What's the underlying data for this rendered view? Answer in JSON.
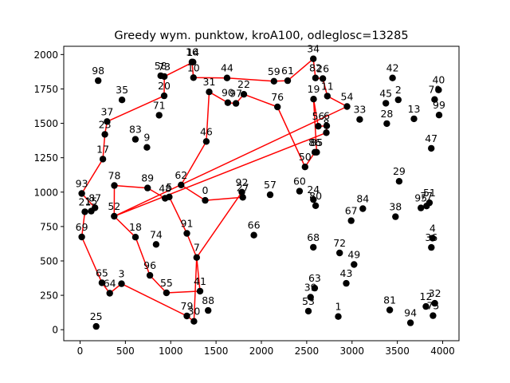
{
  "chart_data": {
    "type": "scatter",
    "title": "Greedy wym. punktow, kroA100, odleglosc=13285",
    "xlabel": "",
    "ylabel": "",
    "xlim": [
      -180,
      4180
    ],
    "ylim": [
      -80,
      2060
    ],
    "xticks": [
      0,
      500,
      1000,
      1500,
      2000,
      2500,
      3000,
      3500,
      4000
    ],
    "yticks": [
      0,
      250,
      500,
      750,
      1000,
      1250,
      1500,
      1750,
      2000
    ],
    "grid": false,
    "colors": {
      "point": "#000000",
      "route": "#ff0000"
    },
    "points": [
      {
        "id": "0",
        "x": 1380,
        "y": 940
      },
      {
        "id": "1",
        "x": 2848,
        "y": 96
      },
      {
        "id": "2",
        "x": 3510,
        "y": 1671
      },
      {
        "id": "3",
        "x": 457,
        "y": 334
      },
      {
        "id": "4",
        "x": 3888,
        "y": 666
      },
      {
        "id": "5",
        "x": 984,
        "y": 965
      },
      {
        "id": "6",
        "x": 2721,
        "y": 1482
      },
      {
        "id": "7",
        "x": 1286,
        "y": 525
      },
      {
        "id": "8",
        "x": 2716,
        "y": 1432
      },
      {
        "id": "9",
        "x": 738,
        "y": 1325
      },
      {
        "id": "10",
        "x": 1251,
        "y": 1832
      },
      {
        "id": "11",
        "x": 2728,
        "y": 1698
      },
      {
        "id": "12",
        "x": 3815,
        "y": 169
      },
      {
        "id": "13",
        "x": 3683,
        "y": 1533
      },
      {
        "id": "14",
        "x": 1247,
        "y": 1945
      },
      {
        "id": "15",
        "x": 123,
        "y": 862
      },
      {
        "id": "16",
        "x": 1234,
        "y": 1946
      },
      {
        "id": "17",
        "x": 252,
        "y": 1240
      },
      {
        "id": "18",
        "x": 611,
        "y": 673
      },
      {
        "id": "19",
        "x": 2576,
        "y": 1676
      },
      {
        "id": "20",
        "x": 928,
        "y": 1700
      },
      {
        "id": "21",
        "x": 53,
        "y": 857
      },
      {
        "id": "22",
        "x": 1807,
        "y": 1711
      },
      {
        "id": "23",
        "x": 274,
        "y": 1420
      },
      {
        "id": "24",
        "x": 2574,
        "y": 946
      },
      {
        "id": "25",
        "x": 178,
        "y": 24
      },
      {
        "id": "26",
        "x": 2678,
        "y": 1825
      },
      {
        "id": "27",
        "x": 1795,
        "y": 962
      },
      {
        "id": "28",
        "x": 3384,
        "y": 1498
      },
      {
        "id": "29",
        "x": 3520,
        "y": 1079
      },
      {
        "id": "30",
        "x": 1256,
        "y": 61
      },
      {
        "id": "31",
        "x": 1424,
        "y": 1728
      },
      {
        "id": "32",
        "x": 3913,
        "y": 192
      },
      {
        "id": "33",
        "x": 3085,
        "y": 1528
      },
      {
        "id": "34",
        "x": 2573,
        "y": 1969
      },
      {
        "id": "35",
        "x": 463,
        "y": 1670
      },
      {
        "id": "36",
        "x": 3875,
        "y": 598
      },
      {
        "id": "37",
        "x": 298,
        "y": 1513
      },
      {
        "id": "38",
        "x": 3479,
        "y": 821
      },
      {
        "id": "39",
        "x": 2542,
        "y": 236
      },
      {
        "id": "40",
        "x": 3955,
        "y": 1743
      },
      {
        "id": "41",
        "x": 1323,
        "y": 280
      },
      {
        "id": "42",
        "x": 3447,
        "y": 1830
      },
      {
        "id": "43",
        "x": 2936,
        "y": 337
      },
      {
        "id": "44",
        "x": 1621,
        "y": 1830
      },
      {
        "id": "45",
        "x": 3373,
        "y": 1646
      },
      {
        "id": "46",
        "x": 1393,
        "y": 1368
      },
      {
        "id": "47",
        "x": 3874,
        "y": 1318
      },
      {
        "id": "48",
        "x": 938,
        "y": 955
      },
      {
        "id": "49",
        "x": 3022,
        "y": 474
      },
      {
        "id": "50",
        "x": 2482,
        "y": 1183
      },
      {
        "id": "51",
        "x": 3854,
        "y": 923
      },
      {
        "id": "52",
        "x": 376,
        "y": 825
      },
      {
        "id": "53",
        "x": 2519,
        "y": 135
      },
      {
        "id": "54",
        "x": 2945,
        "y": 1622
      },
      {
        "id": "55",
        "x": 953,
        "y": 268
      },
      {
        "id": "56",
        "x": 2628,
        "y": 1479
      },
      {
        "id": "57",
        "x": 2097,
        "y": 981
      },
      {
        "id": "58",
        "x": 890,
        "y": 1846
      },
      {
        "id": "59",
        "x": 2139,
        "y": 1806
      },
      {
        "id": "60",
        "x": 2421,
        "y": 1007
      },
      {
        "id": "61",
        "x": 2290,
        "y": 1810
      },
      {
        "id": "62",
        "x": 1115,
        "y": 1052
      },
      {
        "id": "63",
        "x": 2588,
        "y": 302
      },
      {
        "id": "64",
        "x": 327,
        "y": 265
      },
      {
        "id": "65",
        "x": 241,
        "y": 341
      },
      {
        "id": "66",
        "x": 1917,
        "y": 687
      },
      {
        "id": "67",
        "x": 2991,
        "y": 792
      },
      {
        "id": "68",
        "x": 2573,
        "y": 599
      },
      {
        "id": "69",
        "x": 19,
        "y": 674
      },
      {
        "id": "70",
        "x": 3911,
        "y": 1673
      },
      {
        "id": "71",
        "x": 872,
        "y": 1559
      },
      {
        "id": "72",
        "x": 2863,
        "y": 558
      },
      {
        "id": "73",
        "x": 929,
        "y": 1840
      },
      {
        "id": "74",
        "x": 839,
        "y": 620
      },
      {
        "id": "75",
        "x": 3893,
        "y": 102
      },
      {
        "id": "76",
        "x": 2178,
        "y": 1619
      },
      {
        "id": "77",
        "x": 3822,
        "y": 899
      },
      {
        "id": "78",
        "x": 378,
        "y": 1048
      },
      {
        "id": "79",
        "x": 1178,
        "y": 100
      },
      {
        "id": "80",
        "x": 2599,
        "y": 901
      },
      {
        "id": "81",
        "x": 3416,
        "y": 143
      },
      {
        "id": "82",
        "x": 2597,
        "y": 1830
      },
      {
        "id": "83",
        "x": 610,
        "y": 1384
      },
      {
        "id": "84",
        "x": 3119,
        "y": 880
      },
      {
        "id": "85",
        "x": 2610,
        "y": 1290
      },
      {
        "id": "86",
        "x": 2590,
        "y": 1290
      },
      {
        "id": "87",
        "x": 165,
        "y": 886
      },
      {
        "id": "88",
        "x": 1413,
        "y": 140
      },
      {
        "id": "89",
        "x": 745,
        "y": 1030
      },
      {
        "id": "90",
        "x": 1630,
        "y": 1650
      },
      {
        "id": "91",
        "x": 1178,
        "y": 700
      },
      {
        "id": "92",
        "x": 1785,
        "y": 1000
      },
      {
        "id": "93",
        "x": 19,
        "y": 990
      },
      {
        "id": "94",
        "x": 3645,
        "y": 50
      },
      {
        "id": "95",
        "x": 3760,
        "y": 885
      },
      {
        "id": "96",
        "x": 770,
        "y": 395
      },
      {
        "id": "97",
        "x": 1720,
        "y": 1645
      },
      {
        "id": "98",
        "x": 200,
        "y": 1810
      },
      {
        "id": "99",
        "x": 3960,
        "y": 1560
      }
    ],
    "route": [
      "69",
      "21",
      "15",
      "87",
      "93",
      "17",
      "23",
      "37",
      "20",
      "73",
      "14",
      "16",
      "10",
      "44",
      "59",
      "61",
      "34",
      "82",
      "26",
      "11",
      "54",
      "52",
      "8",
      "6",
      "56",
      "19",
      "85",
      "86",
      "50",
      "76",
      "22",
      "97",
      "90",
      "31",
      "46",
      "62",
      "0",
      "27",
      "92",
      "7",
      "41",
      "55",
      "96",
      "18",
      "52",
      "78",
      "89",
      "48",
      "5",
      "91",
      "7",
      "30",
      "79",
      "3",
      "64",
      "65",
      "69"
    ]
  }
}
